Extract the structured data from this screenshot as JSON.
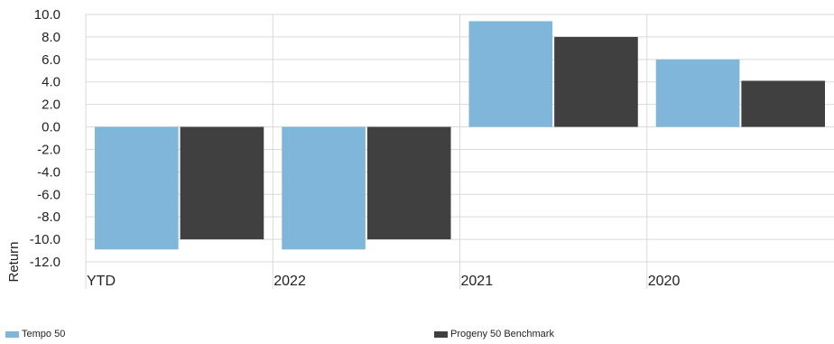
{
  "chart_data": {
    "type": "bar",
    "categories": [
      "YTD",
      "2022",
      "2021",
      "2020"
    ],
    "series": [
      {
        "name": "Tempo 50",
        "color": "#7fb6da",
        "values": [
          -10.9,
          -10.9,
          9.4,
          6.0
        ]
      },
      {
        "name": "Progeny 50 Benchmark",
        "color": "#404040",
        "values": [
          -10.0,
          -10.0,
          8.0,
          4.1
        ]
      }
    ],
    "ylabel": "Return",
    "ylim": [
      -12.0,
      10.0
    ],
    "yticks": [
      "10.0",
      "8.0",
      "6.0",
      "4.0",
      "2.0",
      "0.0",
      "-2.0",
      "-4.0",
      "-6.0",
      "-8.0",
      "-10.0",
      "-12.0"
    ],
    "grid": true,
    "legend_position": "bottom"
  }
}
